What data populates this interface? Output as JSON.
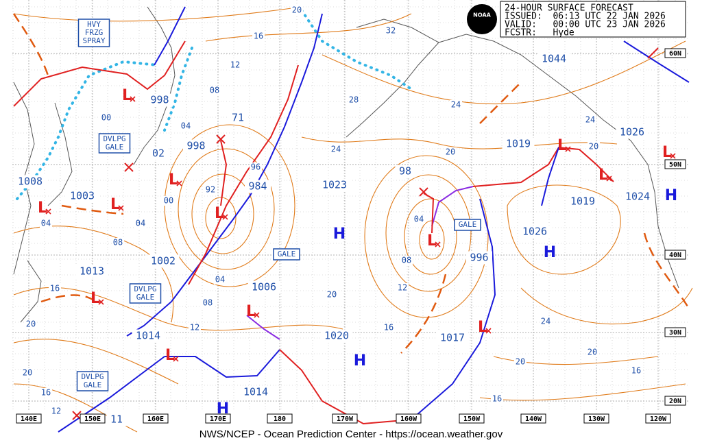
{
  "header": {
    "title": "24-HOUR SURFACE FORECAST",
    "lines": [
      "ISSUED:  06:13 UTC 22 JAN 2026",
      "VALID:   00:00 UTC 23 JAN 2026",
      "FCSTR:   Hyde"
    ]
  },
  "logo": "NOAA",
  "pressure_labels": [
    "1044",
    "998",
    "71",
    "02",
    "998",
    "984",
    "1023",
    "98",
    "1019",
    "1026",
    "1008",
    "1003",
    "1013",
    "1002",
    "1006",
    "1020",
    "996",
    "1026",
    "1019",
    "1024",
    "1014",
    "1017",
    "1014",
    "11"
  ],
  "isobar_labels": [
    "20",
    "32",
    "16",
    "12",
    "08",
    "28",
    "24",
    "04",
    "24",
    "00",
    "20",
    "24",
    "20",
    "96",
    "92",
    "00",
    "04",
    "04",
    "04",
    "08",
    "08",
    "04",
    "12",
    "20",
    "16",
    "08",
    "20",
    "24",
    "12",
    "16",
    "20",
    "20",
    "16",
    "20",
    "16",
    "16",
    "12"
  ],
  "lows": [
    "L",
    "L",
    "L",
    "L",
    "L",
    "L",
    "L",
    "L",
    "L",
    "L",
    "L",
    "L",
    "L"
  ],
  "highs": [
    "H",
    "H",
    "H",
    "H",
    "H"
  ],
  "warnings": [
    {
      "lines": [
        "HVY",
        "FRZG",
        "SPRAY"
      ]
    },
    {
      "lines": [
        "DVLPG",
        "GALE"
      ]
    },
    {
      "lines": [
        "DVLPG",
        "GALE"
      ]
    },
    {
      "lines": [
        "DVLPG",
        "GALE"
      ]
    },
    {
      "lines": [
        "GALE"
      ]
    },
    {
      "lines": [
        "GALE"
      ]
    }
  ],
  "longitudes": [
    "140E",
    "150E",
    "160E",
    "170E",
    "180",
    "170W",
    "160W",
    "150W",
    "140W",
    "130W",
    "120W"
  ],
  "latitudes": [
    "60N",
    "50N",
    "40N",
    "30N",
    "20N"
  ],
  "footer": "NWS/NCEP - Ocean Prediction Center - https://ocean.weather.gov"
}
